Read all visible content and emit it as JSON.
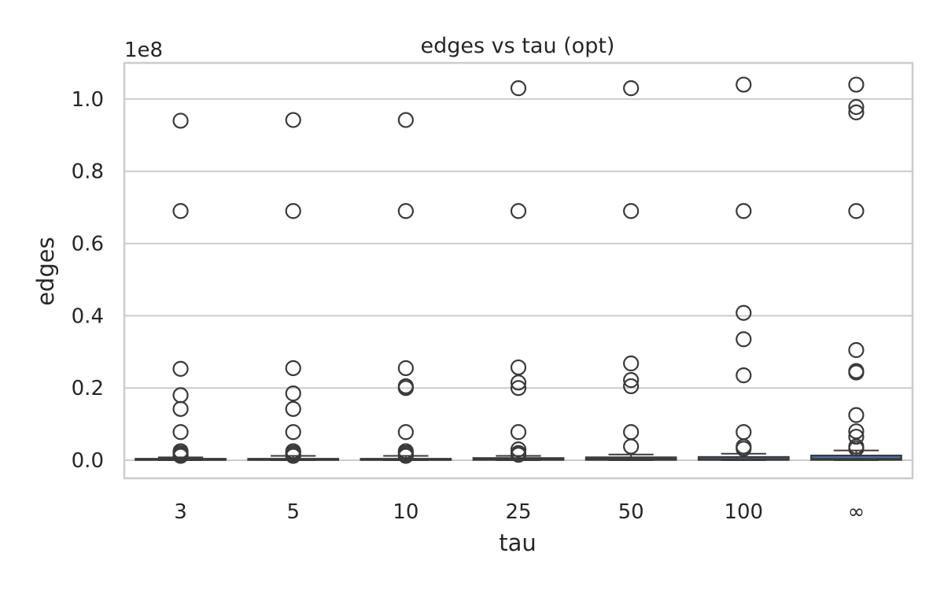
{
  "chart_data": {
    "type": "box",
    "title": "edges vs tau (opt)",
    "xlabel": "tau",
    "ylabel": "edges",
    "y_offset_label": "1e8",
    "ylim": [
      -0.05,
      1.1
    ],
    "y_ticks": [
      0.0,
      0.2,
      0.4,
      0.6,
      0.8,
      1.0
    ],
    "y_tick_labels": [
      "0.0",
      "0.2",
      "0.4",
      "0.6",
      "0.8",
      "1.0"
    ],
    "grid": true,
    "categories": [
      "3",
      "5",
      "10",
      "25",
      "50",
      "100",
      "∞"
    ],
    "box_color": "#4c72b0",
    "edge_color": "#3a3a3a",
    "boxes": [
      {
        "category": "3",
        "q1": 0.001,
        "median": 0.002,
        "q3": 0.004,
        "whisker_low": 0.0,
        "whisker_high": 0.008,
        "outliers": [
          0.94,
          0.69,
          0.253,
          0.18,
          0.142,
          0.078,
          0.025,
          0.02,
          0.015,
          0.012
        ]
      },
      {
        "category": "5",
        "q1": 0.001,
        "median": 0.002,
        "q3": 0.004,
        "whisker_low": 0.0,
        "whisker_high": 0.012,
        "outliers": [
          0.942,
          0.69,
          0.255,
          0.185,
          0.142,
          0.078,
          0.025,
          0.02,
          0.015,
          0.012
        ]
      },
      {
        "category": "10",
        "q1": 0.001,
        "median": 0.002,
        "q3": 0.004,
        "whisker_low": 0.0,
        "whisker_high": 0.012,
        "outliers": [
          0.942,
          0.69,
          0.255,
          0.205,
          0.2,
          0.078,
          0.025,
          0.02,
          0.015,
          0.012
        ]
      },
      {
        "category": "25",
        "q1": 0.001,
        "median": 0.003,
        "q3": 0.006,
        "whisker_low": 0.0,
        "whisker_high": 0.012,
        "outliers": [
          1.03,
          0.69,
          0.257,
          0.215,
          0.2,
          0.078,
          0.03,
          0.02,
          0.015
        ]
      },
      {
        "category": "50",
        "q1": 0.001,
        "median": 0.003,
        "q3": 0.008,
        "whisker_low": 0.0,
        "whisker_high": 0.016,
        "outliers": [
          1.03,
          0.69,
          0.268,
          0.222,
          0.205,
          0.078,
          0.038
        ]
      },
      {
        "category": "100",
        "q1": 0.001,
        "median": 0.003,
        "q3": 0.009,
        "whisker_low": 0.0,
        "whisker_high": 0.018,
        "outliers": [
          1.04,
          0.69,
          0.408,
          0.335,
          0.235,
          0.078,
          0.038,
          0.032
        ]
      },
      {
        "category": "∞",
        "q1": 0.001,
        "median": 0.004,
        "q3": 0.013,
        "whisker_low": 0.0,
        "whisker_high": 0.027,
        "outliers": [
          1.04,
          0.978,
          0.963,
          0.69,
          0.305,
          0.247,
          0.243,
          0.125,
          0.08,
          0.065,
          0.038,
          0.032
        ]
      }
    ]
  }
}
